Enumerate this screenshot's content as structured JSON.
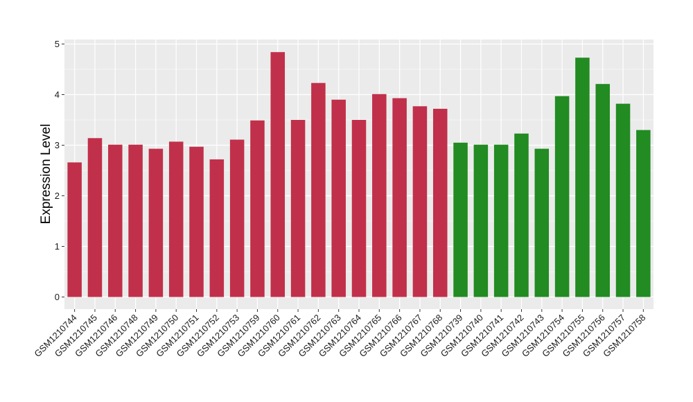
{
  "chart_data": {
    "type": "bar",
    "title": "",
    "xlabel": "",
    "ylabel": "Expression Level",
    "ylim": [
      0,
      5
    ],
    "yticks": [
      0,
      1,
      2,
      3,
      4,
      5
    ],
    "grid": true,
    "categories": [
      "GSM1210744",
      "GSM1210745",
      "GSM1210746",
      "GSM1210748",
      "GSM1210749",
      "GSM1210750",
      "GSM1210751",
      "GSM1210752",
      "GSM1210753",
      "GSM1210759",
      "GSM1210760",
      "GSM1210761",
      "GSM1210762",
      "GSM1210763",
      "GSM1210764",
      "GSM1210765",
      "GSM1210766",
      "GSM1210767",
      "GSM1210768",
      "GSM1210739",
      "GSM1210740",
      "GSM1210741",
      "GSM1210742",
      "GSM1210743",
      "GSM1210754",
      "GSM1210755",
      "GSM1210756",
      "GSM1210757",
      "GSM1210758"
    ],
    "values": [
      2.66,
      3.14,
      3.01,
      3.01,
      2.93,
      3.07,
      2.97,
      2.72,
      3.11,
      3.49,
      4.84,
      3.5,
      4.23,
      3.9,
      3.5,
      4.01,
      3.93,
      3.77,
      3.72,
      3.05,
      3.01,
      3.01,
      3.23,
      2.93,
      3.97,
      4.73,
      4.21,
      3.82,
      3.3
    ],
    "bar_colors": [
      "#c1304a",
      "#c1304a",
      "#c1304a",
      "#c1304a",
      "#c1304a",
      "#c1304a",
      "#c1304a",
      "#c1304a",
      "#c1304a",
      "#c1304a",
      "#c1304a",
      "#c1304a",
      "#c1304a",
      "#c1304a",
      "#c1304a",
      "#c1304a",
      "#c1304a",
      "#c1304a",
      "#c1304a",
      "#228b22",
      "#228b22",
      "#228b22",
      "#228b22",
      "#228b22",
      "#228b22",
      "#228b22",
      "#228b22",
      "#228b22",
      "#228b22"
    ],
    "panel_background": "#ebebeb",
    "gridline_color": "#ffffff"
  }
}
